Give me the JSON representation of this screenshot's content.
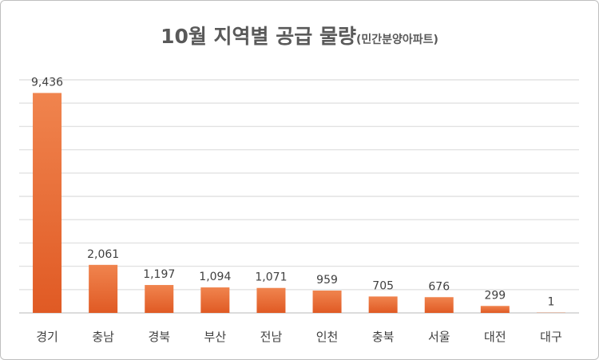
{
  "chart_data": {
    "type": "bar",
    "title": "10월 지역별 공급 물량",
    "subtitle": "(민간분양아파트)",
    "categories": [
      "경기",
      "충남",
      "경북",
      "부산",
      "전남",
      "인천",
      "충북",
      "서울",
      "대전",
      "대구"
    ],
    "values": [
      9436,
      2061,
      1197,
      1094,
      1071,
      959,
      705,
      676,
      299,
      1
    ],
    "value_labels": [
      "9,436",
      "2,061",
      "1,197",
      "1,094",
      "1,071",
      "959",
      "705",
      "676",
      "299",
      "1"
    ],
    "ylim": [
      0,
      10000
    ],
    "grid": true,
    "bar_color": "#e8612c"
  }
}
